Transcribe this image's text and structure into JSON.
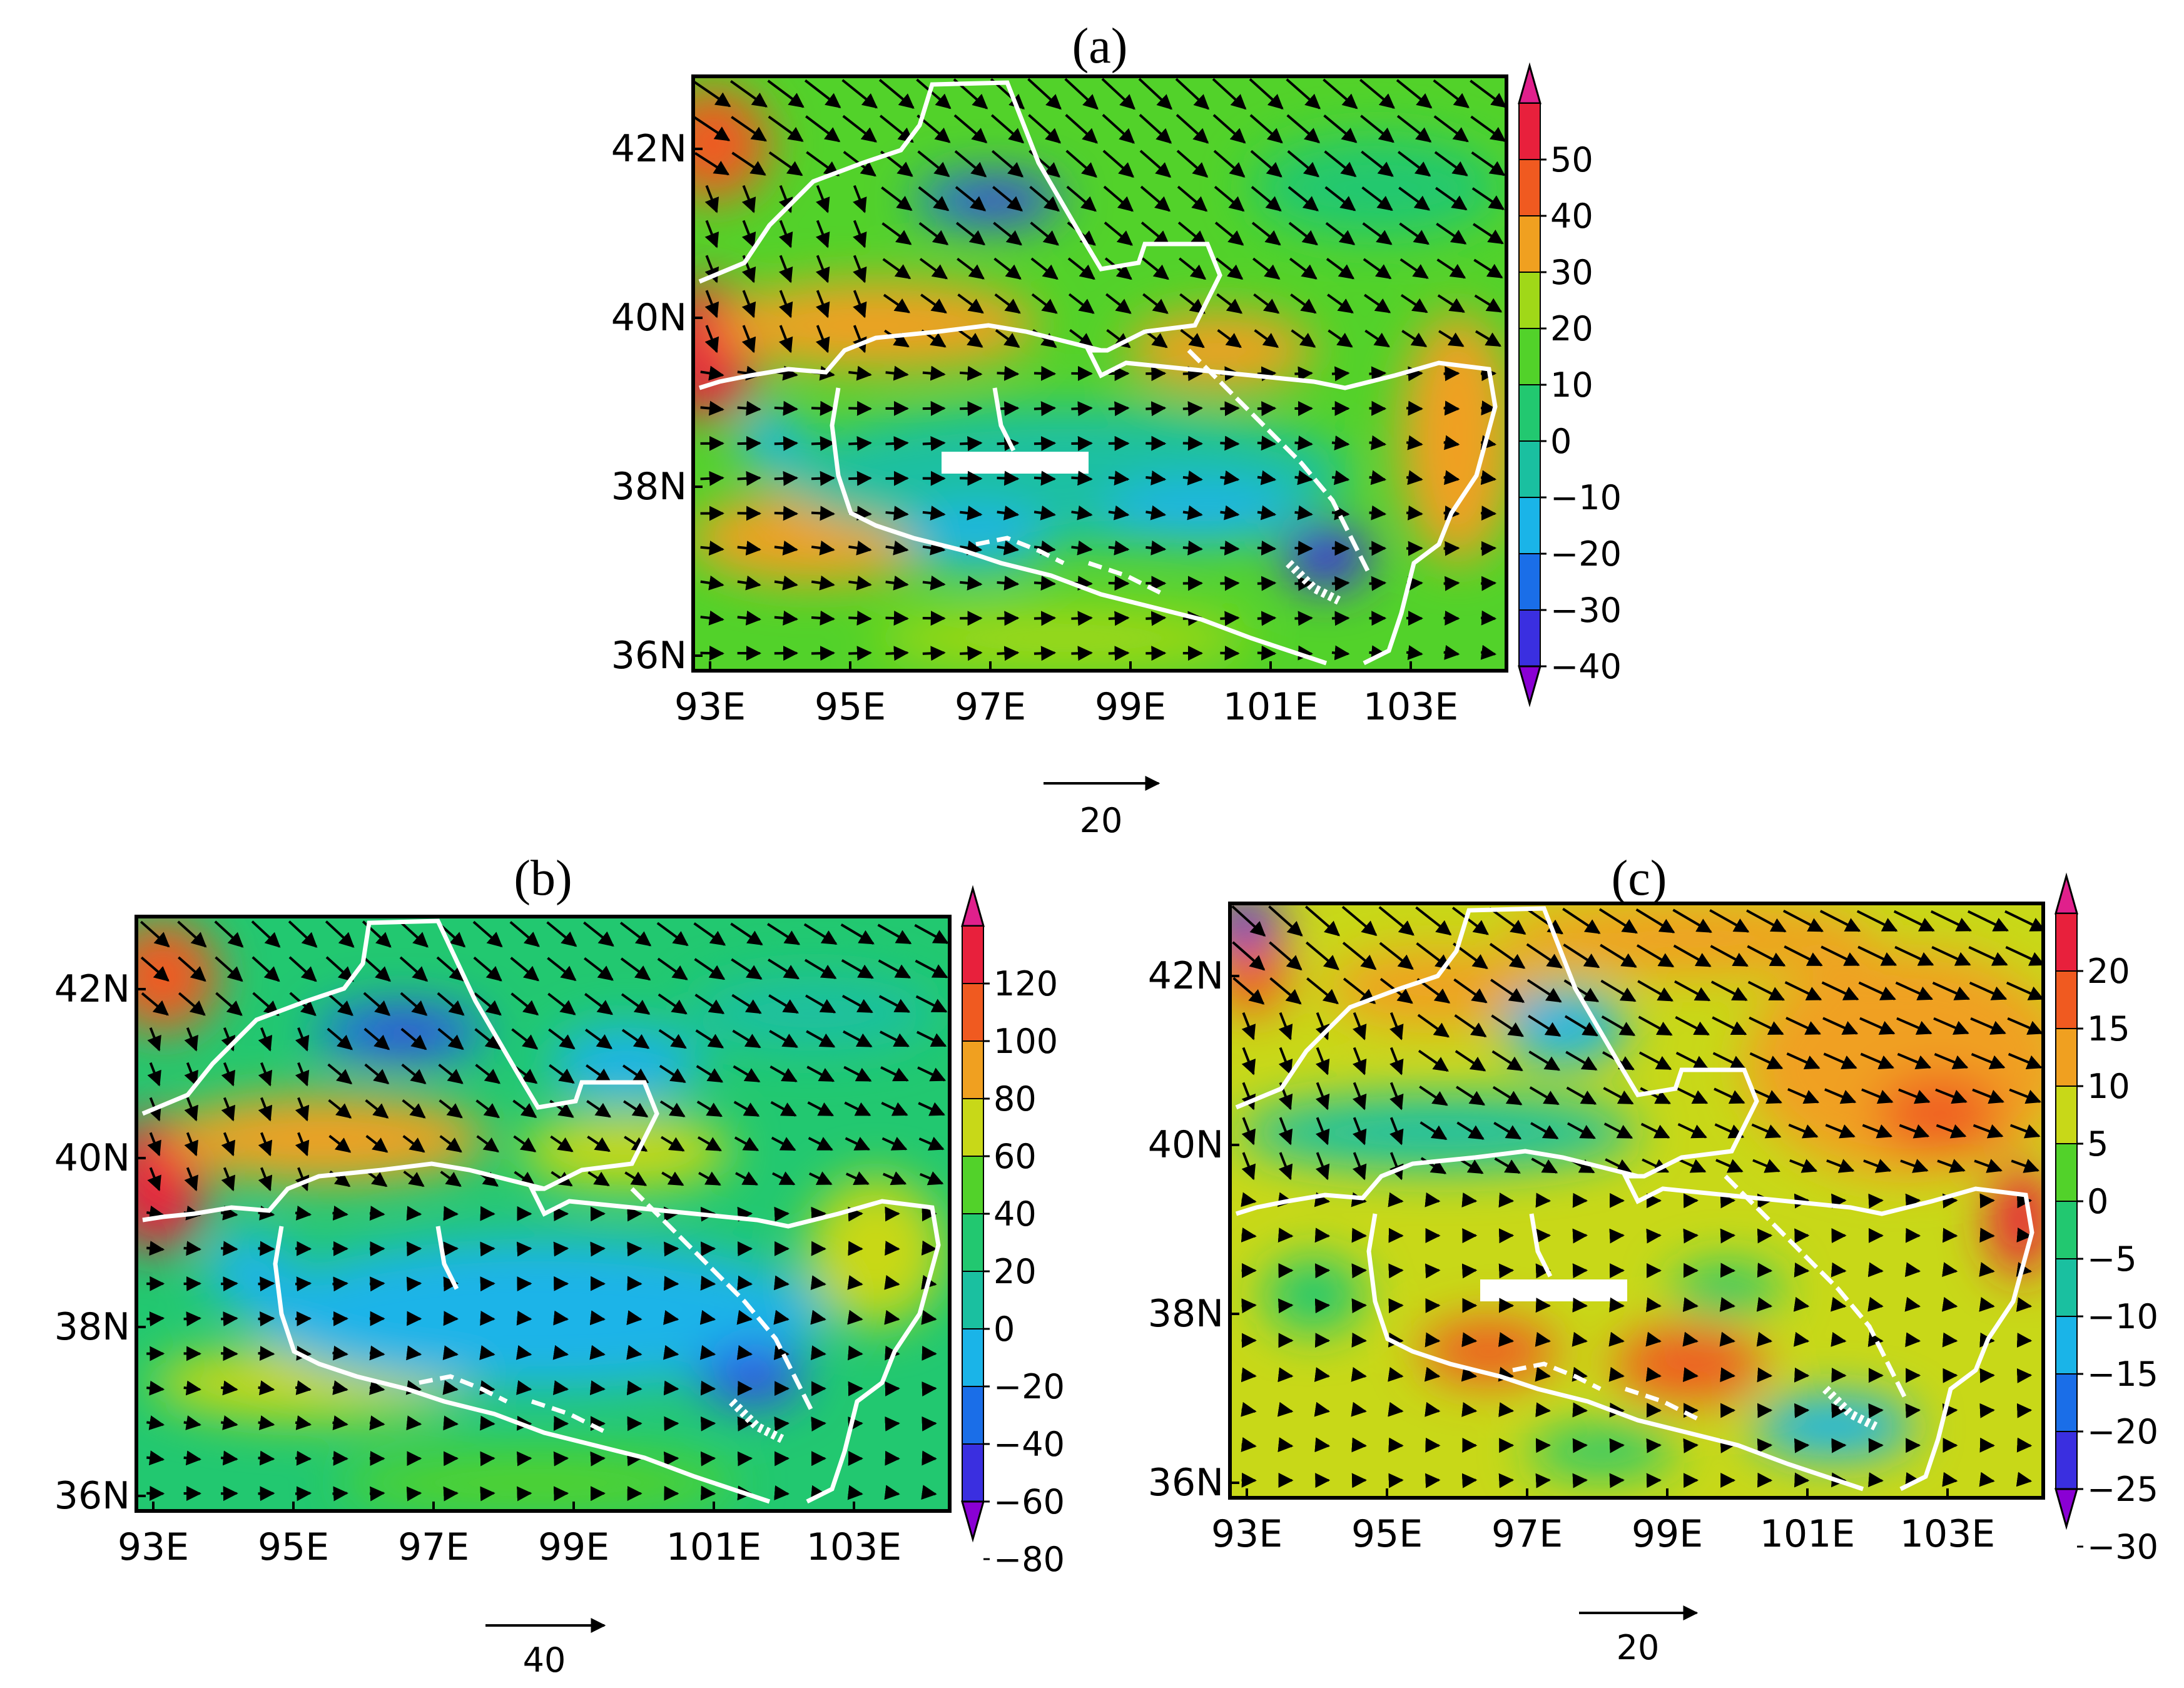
{
  "panels": [
    {
      "id": "a",
      "title": "(a)",
      "x_ticks": [
        "93E",
        "95E",
        "97E",
        "99E",
        "101E",
        "103E"
      ],
      "y_ticks": [
        "42N",
        "40N",
        "38N",
        "36N"
      ],
      "colorbar_labels": [
        "50",
        "40",
        "30",
        "20",
        "10",
        "0",
        "−10",
        "−20",
        "−30",
        "−40"
      ],
      "reference_vector_label": "20",
      "palette": [
        "#8a00d4",
        "#3a2fe0",
        "#1a6ee8",
        "#1ab4e8",
        "#1ac0a0",
        "#22c870",
        "#52d22a",
        "#a0d818",
        "#f0a020",
        "#f05a20",
        "#e8203c",
        "#e0208c"
      ]
    },
    {
      "id": "b",
      "title": "(b)",
      "x_ticks": [
        "93E",
        "95E",
        "97E",
        "99E",
        "101E",
        "103E"
      ],
      "y_ticks": [
        "42N",
        "40N",
        "38N",
        "36N"
      ],
      "colorbar_labels": [
        "120",
        "100",
        "80",
        "60",
        "40",
        "20",
        "0",
        "−20",
        "−40",
        "−60",
        "−80"
      ],
      "reference_vector_label": "40",
      "palette": [
        "#8a00d4",
        "#3a2fe0",
        "#1a6ee8",
        "#1ab4e8",
        "#1ac0a0",
        "#22c870",
        "#52d22a",
        "#c8d818",
        "#f0a020",
        "#f05a20",
        "#e8203c",
        "#e0208c"
      ]
    },
    {
      "id": "c",
      "title": "(c)",
      "x_ticks": [
        "93E",
        "95E",
        "97E",
        "99E",
        "101E",
        "103E"
      ],
      "y_ticks": [
        "42N",
        "40N",
        "38N",
        "36N"
      ],
      "colorbar_labels": [
        "20",
        "15",
        "10",
        "5",
        "0",
        "−5",
        "−10",
        "−15",
        "−20",
        "−25",
        "−30"
      ],
      "reference_vector_label": "20",
      "palette": [
        "#8a00d4",
        "#3a2fe0",
        "#1a6ee8",
        "#1ab4e8",
        "#1ac0a0",
        "#22c870",
        "#52d22a",
        "#c8d818",
        "#f0a020",
        "#f05a20",
        "#e8203c",
        "#e0208c"
      ]
    }
  ]
}
